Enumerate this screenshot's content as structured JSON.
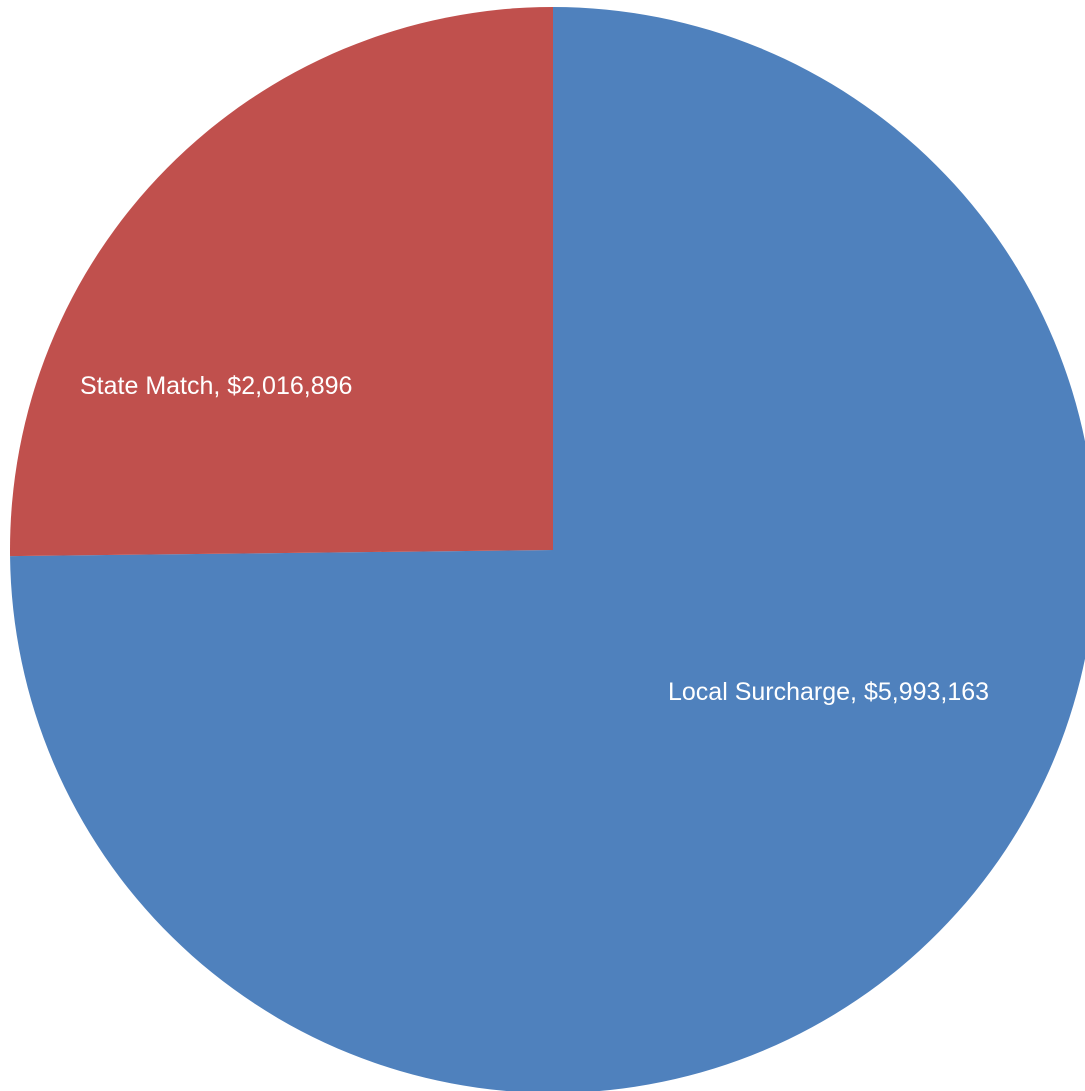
{
  "chart_data": {
    "type": "pie",
    "title": "",
    "slices": [
      {
        "name": "Local Surcharge",
        "value": 5993163,
        "label": "Local Surcharge, $5,993,163",
        "color": "#4F81BD"
      },
      {
        "name": "State Match",
        "value": 2016896,
        "label": "State Match, $2,016,896",
        "color": "#C0504D"
      }
    ],
    "start_angle": "12 o'clock",
    "direction": "clockwise",
    "legend": "none"
  }
}
